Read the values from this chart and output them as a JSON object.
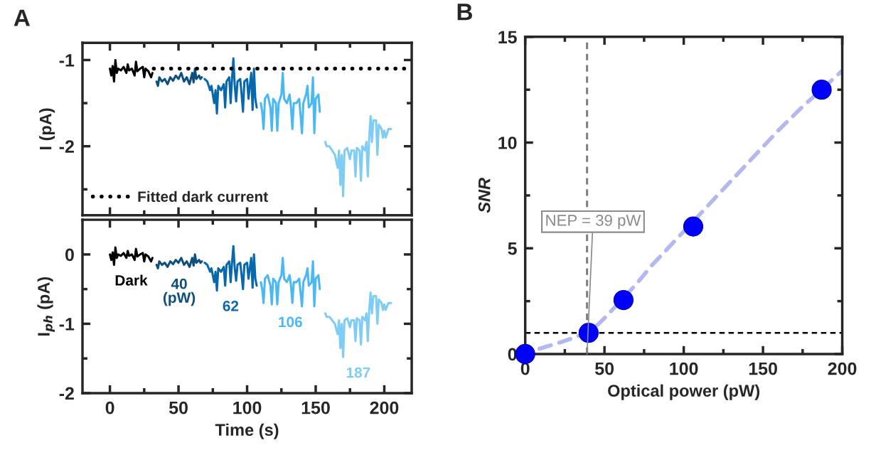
{
  "chart_data": [
    {
      "type": "line",
      "title": "A",
      "ylabel": "I (pA)",
      "xlim": [
        -20,
        220
      ],
      "xticks": [
        0,
        {
          "value": 25,
          "label": null
        },
        50,
        {
          "value": 75,
          "label": null
        },
        100,
        {
          "value": 125,
          "label": null
        },
        150,
        {
          "value": 175,
          "label": null
        },
        200
      ],
      "ylim": [
        -2.8,
        -0.8
      ],
      "yticks": [
        -1,
        {
          "value": -1.5,
          "label": null
        },
        -2,
        {
          "value": -2.5,
          "label": null
        }
      ],
      "tick_labels": "y",
      "legend": "bottom left",
      "series": [
        {
          "color": "#000000",
          "x": [
            0,
            1,
            2,
            3,
            4,
            5,
            6,
            8,
            10,
            12,
            13,
            14,
            16,
            18,
            19,
            20,
            22,
            24,
            25,
            26,
            28,
            30,
            31
          ],
          "values": [
            -1.1,
            -1.18,
            -1.07,
            -1.25,
            -1.0,
            -1.15,
            -1.1,
            -1.12,
            -1.08,
            -1.15,
            -1.05,
            -1.12,
            -1.1,
            -1.18,
            -1.02,
            -1.13,
            -1.1,
            -1.08,
            -1.2,
            -1.1,
            -1.13,
            -1.2,
            -1.15
          ]
        },
        {
          "color": "#0d4f7f",
          "x": [
            34,
            35,
            36,
            38,
            40,
            42,
            44,
            46,
            48,
            50,
            52,
            54,
            56,
            58,
            60,
            61,
            62,
            63,
            65,
            66,
            67
          ],
          "values": [
            -1.25,
            -1.3,
            -1.2,
            -1.25,
            -1.22,
            -1.28,
            -1.2,
            -1.24,
            -1.18,
            -1.22,
            -1.15,
            -1.25,
            -1.2,
            -1.28,
            -1.15,
            -1.26,
            -1.1,
            -1.22,
            -1.18,
            -1.22,
            -1.2
          ]
        },
        {
          "color": "#0868ad",
          "x": [
            69,
            71,
            73,
            74,
            76,
            77,
            78,
            79,
            81,
            83,
            84,
            85,
            87,
            88,
            89,
            90,
            91,
            92,
            93,
            95,
            96,
            97,
            98,
            100,
            101,
            103,
            104,
            105,
            106,
            107
          ],
          "values": [
            -1.22,
            -1.25,
            -1.35,
            -1.3,
            -1.5,
            -1.35,
            -1.62,
            -1.3,
            -1.35,
            -1.28,
            -1.55,
            -1.25,
            -1.2,
            -1.5,
            -1.22,
            -0.98,
            -1.3,
            -1.48,
            -1.25,
            -1.22,
            -1.4,
            -1.6,
            -1.25,
            -1.22,
            -1.45,
            -1.15,
            -1.58,
            -1.1,
            -1.45,
            -1.55
          ]
        },
        {
          "color": "#4ab8f2",
          "x": [
            110,
            111,
            112,
            113,
            115,
            117,
            118,
            119,
            121,
            122,
            123,
            125,
            126,
            127,
            129,
            131,
            132,
            133,
            134,
            136,
            138,
            139,
            140,
            141,
            143,
            144,
            145,
            147,
            148,
            149,
            150,
            152,
            153
          ],
          "values": [
            -1.5,
            -1.6,
            -1.8,
            -1.45,
            -1.4,
            -1.55,
            -1.82,
            -1.45,
            -1.5,
            -1.82,
            -1.5,
            -1.4,
            -1.15,
            -1.45,
            -1.5,
            -1.4,
            -1.55,
            -1.8,
            -1.5,
            -1.5,
            -1.45,
            -1.65,
            -1.85,
            -1.5,
            -1.4,
            -1.3,
            -1.55,
            -1.5,
            -1.2,
            -1.85,
            -1.45,
            -1.4,
            -1.6
          ]
        },
        {
          "color": "#7fccf5",
          "x": [
            157,
            158,
            160,
            162,
            164,
            166,
            167,
            168,
            169,
            170,
            171,
            173,
            175,
            176,
            178,
            179,
            180,
            182,
            183,
            184,
            186,
            187,
            188,
            189,
            190,
            191,
            192,
            194,
            195,
            196,
            198,
            199,
            200,
            201,
            203,
            205
          ],
          "values": [
            -1.95,
            -2.0,
            -2.0,
            -2.05,
            -2.1,
            -2.25,
            -2.05,
            -2.45,
            -2.1,
            -2.58,
            -2.05,
            -2.02,
            -2.15,
            -2.05,
            -2.05,
            -2.35,
            -2.02,
            -2.05,
            -2.4,
            -2.0,
            -2.05,
            -1.95,
            -2.35,
            -1.9,
            -1.65,
            -1.95,
            -1.7,
            -1.7,
            -2.1,
            -1.75,
            -1.8,
            -1.9,
            -1.82,
            -1.9,
            -1.8,
            -1.8
          ]
        },
        {
          "name": "Fitted dark current",
          "color": "#000000",
          "line_style": "dotted",
          "x": [
            32,
            215
          ],
          "values": [
            -1.1,
            -1.1
          ]
        }
      ]
    },
    {
      "type": "line",
      "xlabel": "Time (s)",
      "ylabel": "I$_{ph}$ (pA)",
      "xlim": [
        -20,
        220
      ],
      "xticks": [
        0,
        {
          "value": 25,
          "label": null
        },
        50,
        {
          "value": 75,
          "label": null
        },
        100,
        {
          "value": 125,
          "label": null
        },
        150,
        {
          "value": 175,
          "label": null
        },
        200
      ],
      "ylim": [
        -2,
        0.5
      ],
      "yticks": [
        0,
        {
          "value": -0.5,
          "label": null
        },
        -1,
        {
          "value": -1.5,
          "label": null
        },
        -2
      ],
      "series": [
        {
          "name": "Dark",
          "color": "#000000",
          "x": [
            0,
            1,
            2,
            3,
            4,
            5,
            6,
            8,
            10,
            12,
            13,
            14,
            16,
            18,
            19,
            20,
            22,
            24,
            25,
            26,
            28,
            30,
            31
          ],
          "values": [
            0,
            -0.08,
            0.03,
            -0.15,
            0.1,
            -0.05,
            0,
            -0.02,
            0.02,
            -0.05,
            0.05,
            -0.02,
            0,
            -0.08,
            0.08,
            -0.03,
            0,
            0.02,
            -0.1,
            0,
            -0.03,
            -0.1,
            -0.05
          ]
        },
        {
          "name": "40\n(pW)",
          "color": "#0d4f7f",
          "x": [
            34,
            35,
            36,
            38,
            40,
            42,
            44,
            46,
            48,
            50,
            52,
            54,
            56,
            58,
            60,
            61,
            62,
            63,
            65,
            66,
            67
          ],
          "values": [
            -0.15,
            -0.2,
            -0.1,
            -0.15,
            -0.12,
            -0.18,
            -0.1,
            -0.14,
            -0.08,
            -0.12,
            -0.05,
            -0.15,
            -0.1,
            -0.18,
            -0.05,
            -0.16,
            0,
            -0.12,
            -0.08,
            -0.12,
            -0.1
          ]
        },
        {
          "name": "62",
          "color": "#0868ad",
          "x": [
            69,
            71,
            73,
            74,
            76,
            77,
            78,
            79,
            81,
            83,
            84,
            85,
            87,
            88,
            89,
            90,
            91,
            92,
            93,
            95,
            96,
            97,
            98,
            100,
            101,
            103,
            104,
            105,
            106,
            107
          ],
          "values": [
            -0.12,
            -0.15,
            -0.25,
            -0.2,
            -0.4,
            -0.25,
            -0.52,
            -0.2,
            -0.25,
            -0.18,
            -0.45,
            -0.15,
            -0.1,
            -0.4,
            -0.12,
            0.12,
            -0.2,
            -0.38,
            -0.15,
            -0.12,
            -0.3,
            -0.5,
            -0.15,
            -0.12,
            -0.35,
            -0.05,
            -0.48,
            0,
            -0.35,
            -0.45
          ]
        },
        {
          "name": "106",
          "color": "#4ab8f2",
          "x": [
            110,
            111,
            112,
            113,
            115,
            117,
            118,
            119,
            121,
            122,
            123,
            125,
            126,
            127,
            129,
            131,
            132,
            133,
            134,
            136,
            138,
            139,
            140,
            141,
            143,
            144,
            145,
            147,
            148,
            149,
            150,
            152,
            153
          ],
          "values": [
            -0.4,
            -0.5,
            -0.7,
            -0.35,
            -0.3,
            -0.45,
            -0.72,
            -0.35,
            -0.4,
            -0.72,
            -0.4,
            -0.3,
            -0.05,
            -0.35,
            -0.4,
            -0.3,
            -0.45,
            -0.7,
            -0.4,
            -0.4,
            -0.35,
            -0.55,
            -0.75,
            -0.4,
            -0.3,
            -0.2,
            -0.45,
            -0.4,
            -0.1,
            -0.75,
            -0.35,
            -0.3,
            -0.5
          ]
        },
        {
          "name": "187",
          "color": "#7fccf5",
          "x": [
            157,
            158,
            160,
            162,
            164,
            166,
            167,
            168,
            169,
            170,
            171,
            173,
            175,
            176,
            178,
            179,
            180,
            182,
            183,
            184,
            186,
            187,
            188,
            189,
            190,
            191,
            192,
            194,
            195,
            196,
            198,
            199,
            200,
            201,
            203,
            205
          ],
          "values": [
            -0.85,
            -0.9,
            -0.9,
            -0.95,
            -1.0,
            -1.15,
            -0.95,
            -1.35,
            -1.0,
            -1.48,
            -0.95,
            -0.92,
            -1.05,
            -0.95,
            -0.95,
            -1.25,
            -0.92,
            -0.95,
            -1.3,
            -0.9,
            -0.95,
            -0.85,
            -1.25,
            -0.8,
            -0.55,
            -0.85,
            -0.6,
            -0.6,
            -1.0,
            -0.65,
            -0.7,
            -0.8,
            -0.72,
            -0.8,
            -0.7,
            -0.7
          ]
        }
      ]
    },
    {
      "type": "scatter",
      "title": "B",
      "xlabel": "Optical power (pW)",
      "ylabel": "SNR",
      "xlim": [
        0,
        200
      ],
      "xticks": [
        0,
        {
          "value": 25,
          "label": null
        },
        50,
        {
          "value": 75,
          "label": null
        },
        100,
        {
          "value": 125,
          "label": null
        },
        150,
        {
          "value": 175,
          "label": null
        },
        200
      ],
      "ylim": [
        0,
        15
      ],
      "yticks": [
        0,
        {
          "value": 2.5,
          "label": null
        },
        5,
        {
          "value": 7.5,
          "label": null
        },
        10,
        {
          "value": 12.5,
          "label": null
        },
        15
      ],
      "series": [
        {
          "type": "line",
          "color": "#b3b8f0",
          "line_style": "dashed",
          "x": [
            9,
            20,
            30,
            35,
            46,
            52,
            70,
            80,
            90,
            100,
            112,
            120,
            140,
            160,
            175,
            200
          ],
          "values": [
            0.25,
            0.5,
            0.75,
            0.9,
            1.4,
            1.85,
            3.3,
            4.2,
            5.0,
            5.8,
            6.75,
            7.4,
            9.0,
            10.6,
            11.7,
            13.4
          ]
        },
        {
          "color": "#0000ff",
          "marker": "circle",
          "x": [
            0,
            40,
            62,
            106,
            187
          ],
          "values": [
            0,
            1.0,
            2.55,
            6.03,
            12.5
          ]
        }
      ],
      "ref_lines": [
        {
          "axis": "x",
          "value": 39,
          "color": "#808080",
          "line_style": "dashed"
        },
        {
          "axis": "y",
          "value": 1,
          "color": "#000000",
          "line_style": "dashed"
        }
      ],
      "annotations": [
        {
          "text": "NEP = 39 pW",
          "x": 39,
          "y": 0
        }
      ]
    }
  ]
}
